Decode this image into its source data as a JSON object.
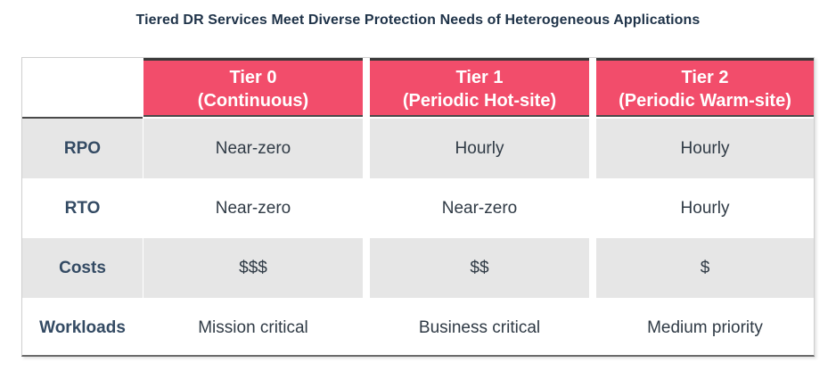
{
  "title": "Tiered DR Services Meet Diverse Protection Needs of Heterogeneous Applications",
  "colors": {
    "header_bg": "#f24d6b",
    "row_shade": "#e6e6e6",
    "label_text": "#334a63"
  },
  "tiers": [
    {
      "name": "Tier 0",
      "subtitle": "(Continuous)"
    },
    {
      "name": "Tier 1",
      "subtitle": "(Periodic Hot-site)"
    },
    {
      "name": "Tier 2",
      "subtitle": "(Periodic Warm-site)"
    }
  ],
  "rows": [
    {
      "label": "RPO",
      "values": [
        "Near-zero",
        "Hourly",
        "Hourly"
      ]
    },
    {
      "label": "RTO",
      "values": [
        "Near-zero",
        "Near-zero",
        "Hourly"
      ]
    },
    {
      "label": "Costs",
      "values": [
        "$$$",
        "$$",
        "$"
      ]
    },
    {
      "label": "Workloads",
      "values": [
        "Mission critical",
        "Business critical",
        "Medium priority"
      ]
    }
  ]
}
